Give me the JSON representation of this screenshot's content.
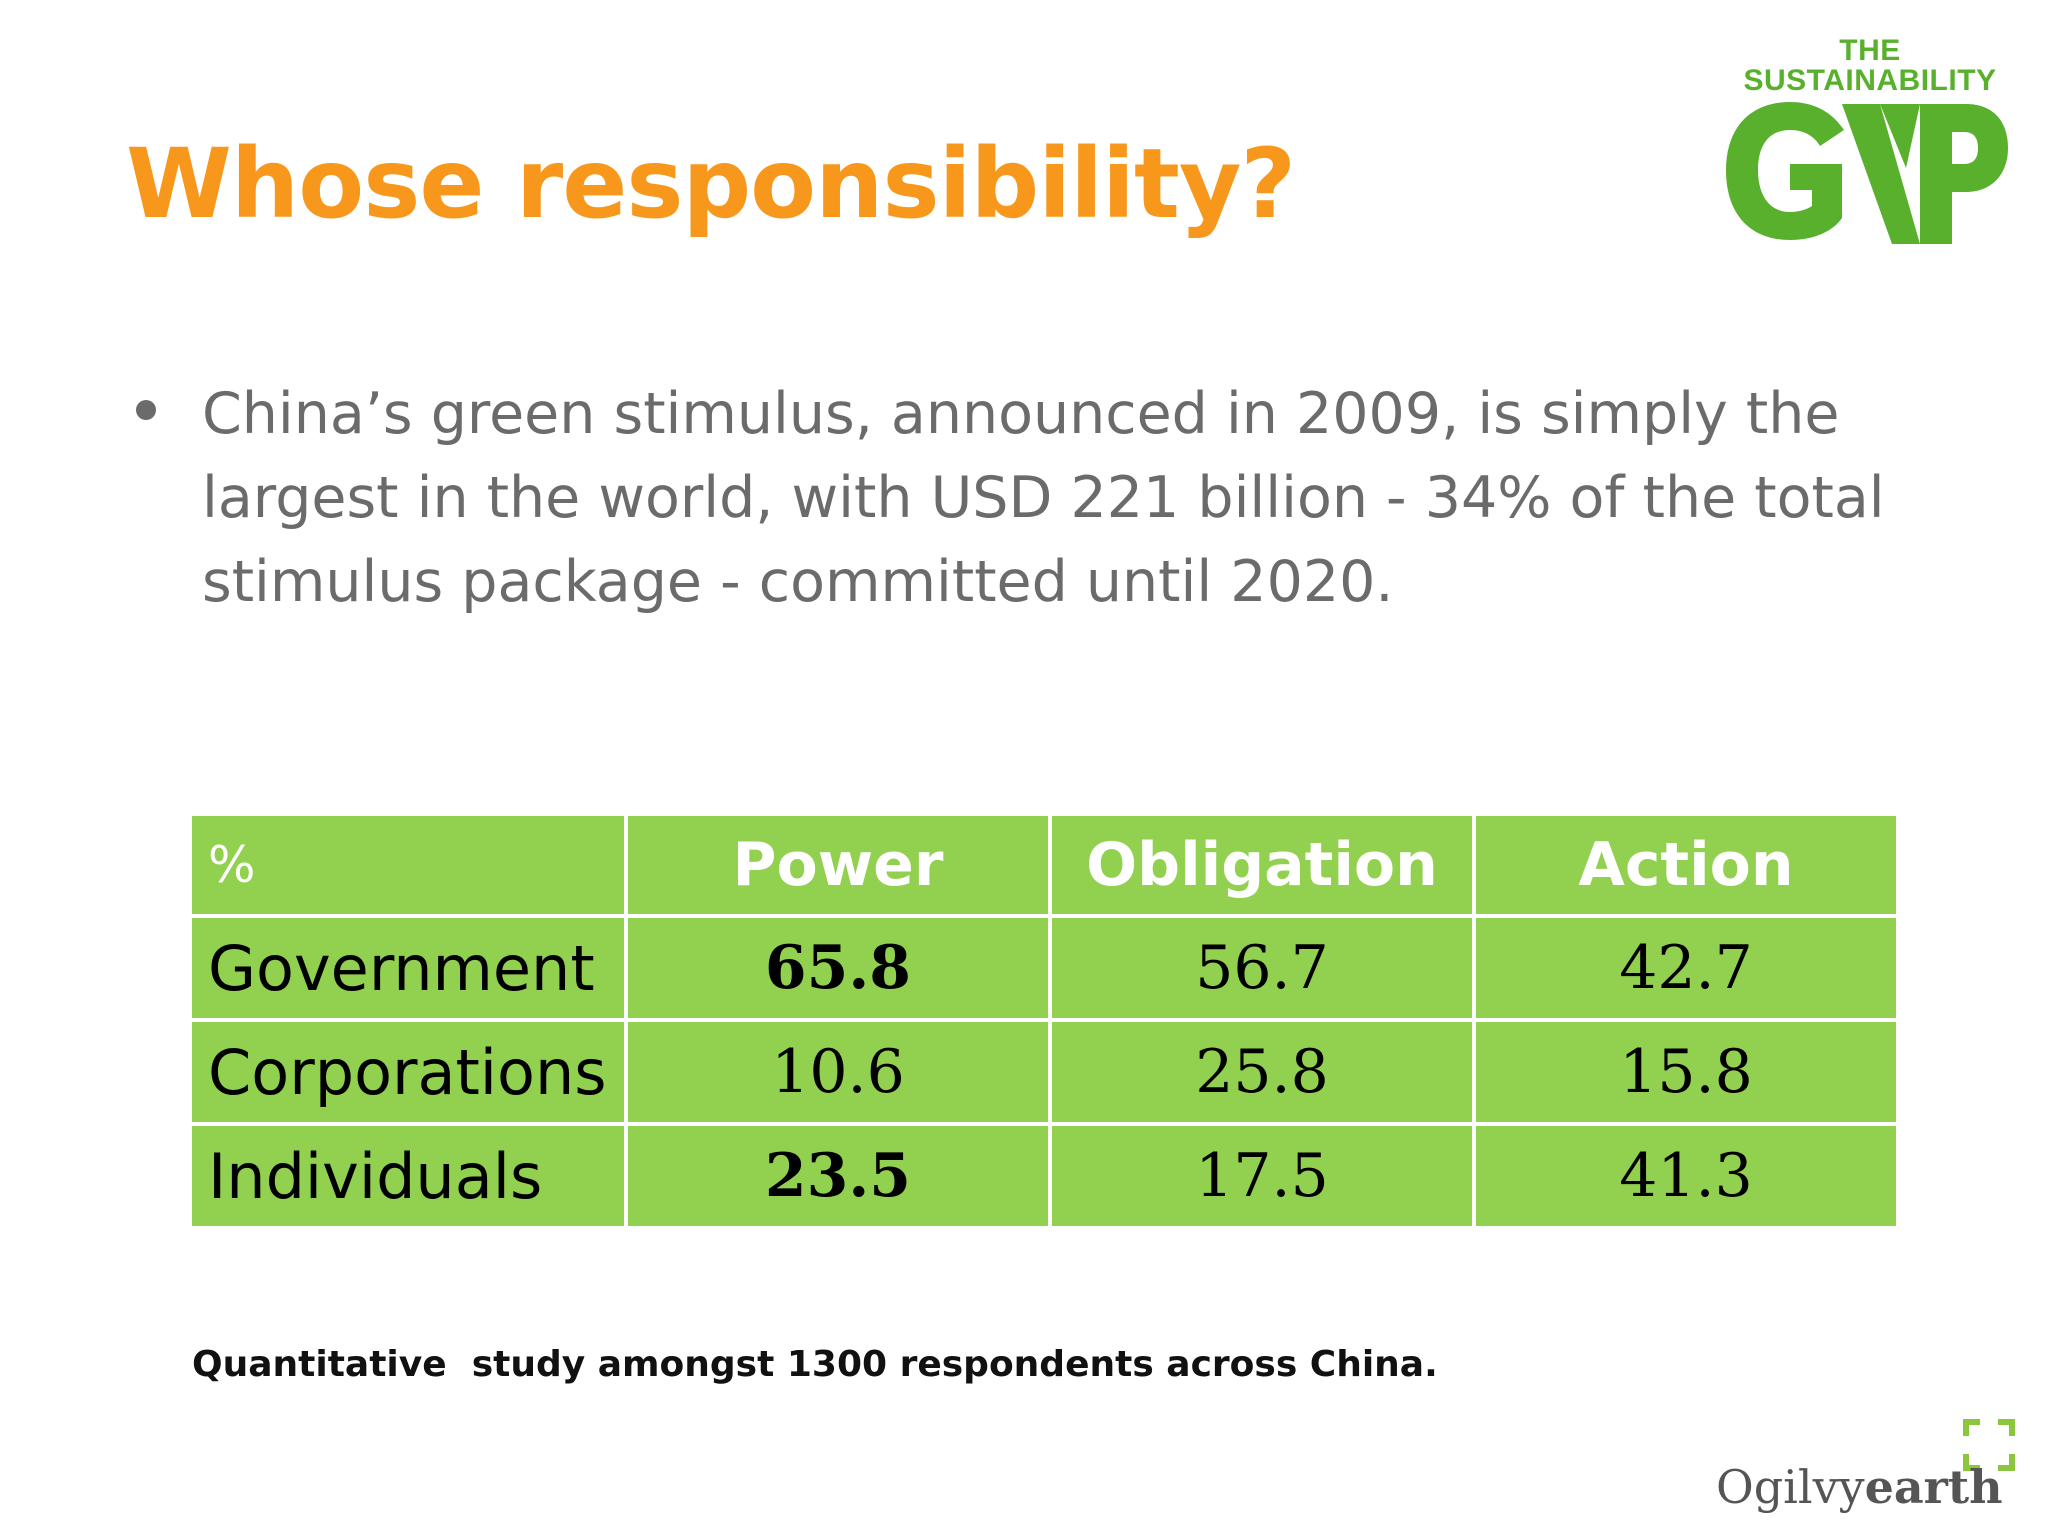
{
  "slide": {
    "title": "Whose responsibility?",
    "bullet": "China’s green stimulus, announced in 2009, is simply the largest in the world, with USD 221 billion - 34% of the total stimulus package - committed until 2020.",
    "footnote": "Quantitative  study amongst 1300 respondents across China."
  },
  "logo": {
    "line1": "THE",
    "line2": "SUSTAINABILITY",
    "word": "GAP",
    "color": "#58b02d"
  },
  "brand": {
    "name_regular": "Ogilvy",
    "name_bold": "earth",
    "accent": "#8cc63f"
  },
  "table": {
    "headers": [
      "%",
      "Power",
      "Obligation",
      "Action"
    ],
    "rows": [
      {
        "label": "Government",
        "power": "65.8",
        "obligation": "56.7",
        "action": "42.7"
      },
      {
        "label": "Corporations",
        "power": "10.6",
        "obligation": "25.8",
        "action": "15.8"
      },
      {
        "label": "Individuals",
        "power": "23.5",
        "obligation": "17.5",
        "action": "41.3"
      }
    ],
    "fill_color": "#92d050"
  },
  "colors": {
    "title": "#f7981d",
    "body_text": "#6b6b6b"
  }
}
